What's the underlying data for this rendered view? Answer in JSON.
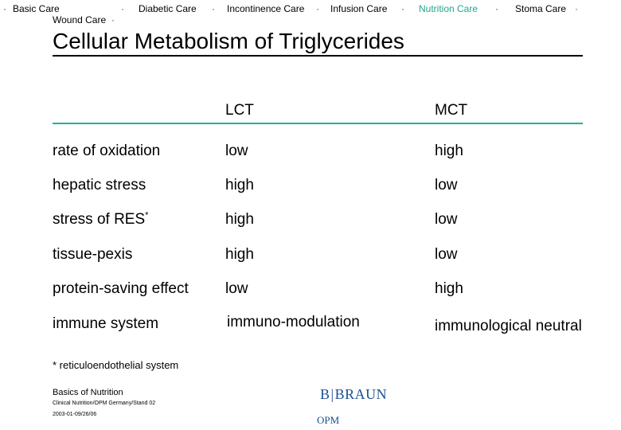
{
  "nav": {
    "dot": "·",
    "items": [
      {
        "label": "Basic Care"
      },
      {
        "label": "Diabetic Care"
      },
      {
        "label": "Incontinence Care"
      },
      {
        "label": "Infusion Care"
      },
      {
        "label": "Nutrition Care",
        "active": true
      },
      {
        "label": "Stoma Care"
      },
      {
        "label": "Wound Care"
      }
    ],
    "accent_color": "#1fa88c"
  },
  "title": "Cellular Metabolism of Triglycerides",
  "table": {
    "headers": [
      "",
      "LCT",
      "MCT"
    ],
    "rows": [
      {
        "label": "rate of oxidation",
        "lct": "low",
        "mct": "high"
      },
      {
        "label": "hepatic stress",
        "lct": "high",
        "mct": "low"
      },
      {
        "label": "stress of RES",
        "label_sup": "*",
        "lct": "high",
        "mct": "low"
      },
      {
        "label": "tissue-pexis",
        "lct": "high",
        "mct": "low"
      },
      {
        "label": "protein-saving effect",
        "lct": "low",
        "mct": "high"
      },
      {
        "label": "immune system",
        "lct": "immuno-modulation",
        "mct": "immunological neutral"
      }
    ]
  },
  "footnote": "* reticuloendothelial system",
  "footer": {
    "doc_title": "Basics of Nutrition",
    "doc_subtitle": "Clinical Nutrition/OPM Germany/Stand 02",
    "doc_date": "2003-01-09/26/06",
    "logo_left": "B",
    "logo_sep": "|",
    "logo_right": "BRAUN",
    "logo_sub": "OPM",
    "logo_color": "#1a4f93"
  }
}
